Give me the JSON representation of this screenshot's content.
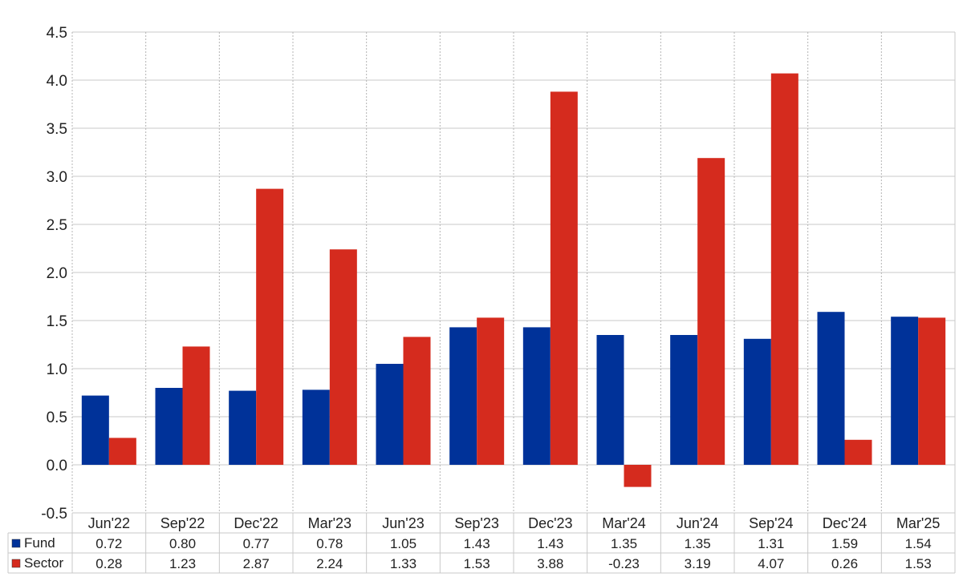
{
  "chart_data": {
    "type": "bar",
    "categories": [
      "Jun'22",
      "Sep'22",
      "Dec'22",
      "Mar'23",
      "Jun'23",
      "Sep'23",
      "Dec'23",
      "Mar'24",
      "Jun'24",
      "Sep'24",
      "Dec'24",
      "Mar'25"
    ],
    "series": [
      {
        "name": "Fund",
        "color": "#003299",
        "values": [
          0.72,
          0.8,
          0.77,
          0.78,
          1.05,
          1.43,
          1.43,
          1.35,
          1.35,
          1.31,
          1.59,
          1.54
        ]
      },
      {
        "name": "Sector",
        "color": "#d52b1e",
        "values": [
          0.28,
          1.23,
          2.87,
          2.24,
          1.33,
          1.53,
          3.88,
          -0.23,
          3.19,
          4.07,
          0.26,
          1.53
        ]
      }
    ],
    "y_ticks": [
      "-0.5",
      "0.0",
      "0.5",
      "1.0",
      "1.5",
      "2.0",
      "2.5",
      "3.0",
      "3.5",
      "4.0",
      "4.5"
    ],
    "ylim": [
      -0.5,
      4.5
    ],
    "grid": true,
    "legend": "data table below chart",
    "negative_value_color": "#ff0000",
    "title": "",
    "xlabel": "",
    "ylabel": ""
  }
}
